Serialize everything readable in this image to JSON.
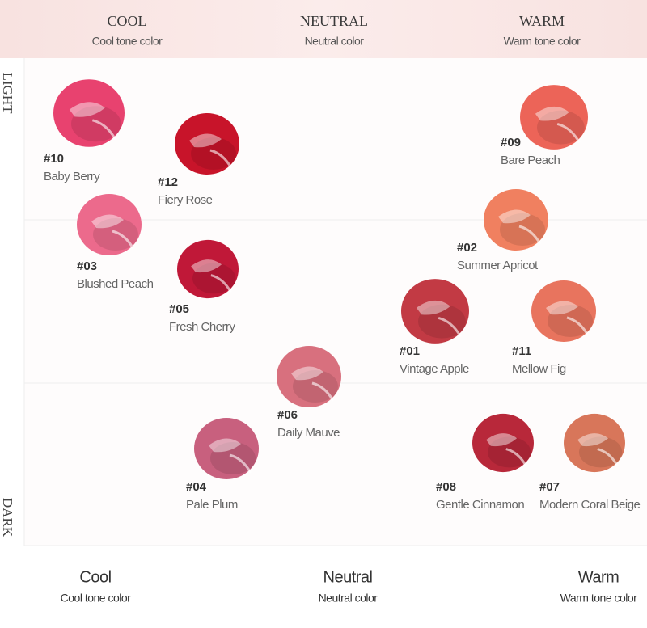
{
  "header": {
    "columns": [
      {
        "title": "COOL",
        "subtitle": "Cool tone color"
      },
      {
        "title": "NEUTRAL",
        "subtitle": "Neutral color"
      },
      {
        "title": "WARM",
        "subtitle": "Warm tone color"
      }
    ]
  },
  "side": {
    "top": "LIGHT",
    "bottom": "DARK"
  },
  "items": [
    {
      "number": "#10",
      "name": "Baby Berry",
      "color": "#e8426f"
    },
    {
      "number": "#12",
      "name": "Fiery Rose",
      "color": "#c8142a"
    },
    {
      "number": "#03",
      "name": "Blushed Peach",
      "color": "#ec6a8c"
    },
    {
      "number": "#05",
      "name": "Fresh Cherry",
      "color": "#c01838"
    },
    {
      "number": "#06",
      "name": "Daily Mauve",
      "color": "#d8707e"
    },
    {
      "number": "#04",
      "name": "Pale Plum",
      "color": "#c8607e"
    },
    {
      "number": "#09",
      "name": "Bare Peach",
      "color": "#ec6458"
    },
    {
      "number": "#02",
      "name": "Summer Apricot",
      "color": "#f08060"
    },
    {
      "number": "#01",
      "name": "Vintage Apple",
      "color": "#c23a44"
    },
    {
      "number": "#11",
      "name": "Mellow Fig",
      "color": "#e8745e"
    },
    {
      "number": "#08",
      "name": "Gentle Cinnamon",
      "color": "#b8283a"
    },
    {
      "number": "#07",
      "name": "Modern Coral Beige",
      "color": "#d8765a"
    }
  ],
  "footer": {
    "columns": [
      {
        "title": "Cool",
        "subtitle": "Cool tone color"
      },
      {
        "title": "Neutral",
        "subtitle": "Neutral color"
      },
      {
        "title": "Warm",
        "subtitle": "Warm tone color"
      }
    ]
  }
}
